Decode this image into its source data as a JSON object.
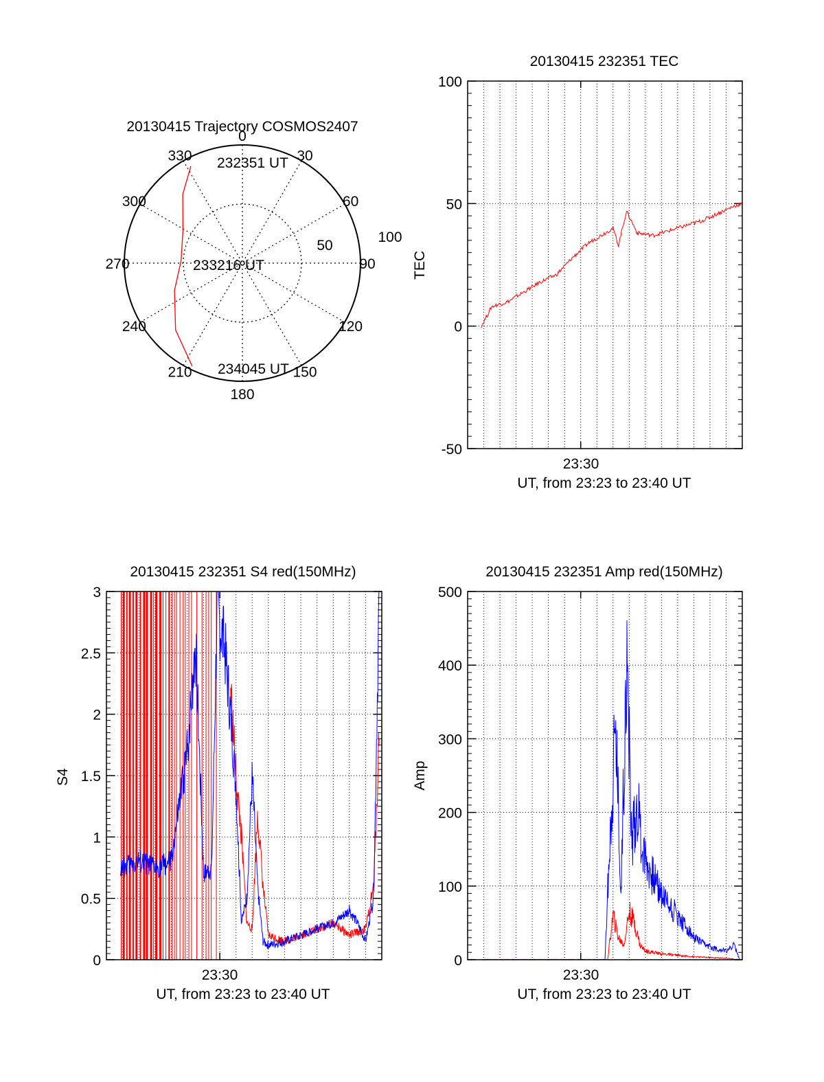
{
  "chart_data": [
    {
      "type": "polar",
      "title": "20130415 Trajectory COSMOS2407",
      "angle_labels": [
        "0",
        "30",
        "60",
        "90",
        "120",
        "150",
        "180",
        "210",
        "240",
        "270",
        "300",
        "330"
      ],
      "radial_labels": [
        "50",
        "100"
      ],
      "rlim": [
        0,
        100
      ],
      "grid": true,
      "series": [
        {
          "color": "#ff0000",
          "points": [
            [
              332,
              93
            ],
            [
              319,
              77
            ],
            [
              298,
              57
            ],
            [
              272,
              52
            ],
            [
              248,
              62
            ],
            [
              225,
              80
            ],
            [
              206,
              97
            ]
          ]
        }
      ],
      "annotations": [
        "232351 UT",
        "233216 UT",
        "234045 UT"
      ]
    },
    {
      "type": "line",
      "title": "20130415 232351 TEC",
      "xlabel": "UT, from 23:23 to 23:40 UT",
      "ylabel": "TEC",
      "x_tick_labels": [
        "23:30"
      ],
      "y_ticks": [
        -50,
        0,
        50,
        100
      ],
      "xlim": [
        "23:23",
        "23:40"
      ],
      "ylim": [
        -50,
        100
      ],
      "grid": true,
      "series": [
        {
          "color": "#ff0000",
          "x": [
            "23:23:51",
            "23:24:30",
            "23:25:30",
            "23:26:30",
            "23:27:30",
            "23:28:30",
            "23:29:30",
            "23:30:30",
            "23:31:30",
            "23:32:00",
            "23:32:20",
            "23:32:50",
            "23:33:30",
            "23:34:30",
            "23:35:30",
            "23:36:30",
            "23:37:30",
            "23:38:30",
            "23:39:30",
            "23:40:00"
          ],
          "y": [
            0,
            8,
            10,
            14,
            18,
            21,
            28,
            34,
            38,
            40,
            33,
            47,
            38,
            37,
            39,
            41,
            43,
            46,
            49,
            50
          ]
        }
      ]
    },
    {
      "type": "line",
      "title": "20130415 232351 S4 red(150MHz)",
      "xlabel": "UT, from 23:23 to 23:40 UT",
      "ylabel": "S4",
      "x_tick_labels": [
        "23:30"
      ],
      "y_ticks": [
        0,
        0.5,
        1,
        1.5,
        2,
        2.5,
        3
      ],
      "y_tick_labels": [
        "0",
        "0.5",
        "1",
        "1.5",
        "2",
        "2.5",
        "3"
      ],
      "xlim": [
        "23:23",
        "23:40"
      ],
      "ylim": [
        0,
        3
      ],
      "grid": true,
      "series": [
        {
          "color": "#ff0000",
          "x": [
            "23:30:40",
            "23:31:00",
            "23:31:20",
            "23:31:40",
            "23:32:00",
            "23:32:20",
            "23:32:40",
            "23:33:00",
            "23:34:00",
            "23:35:00",
            "23:36:00",
            "23:37:00",
            "23:38:00",
            "23:39:00",
            "23:39:30",
            "23:39:50"
          ],
          "y": [
            2.2,
            1.5,
            1.0,
            0.3,
            0.25,
            1.2,
            0.6,
            0.2,
            0.15,
            0.2,
            0.25,
            0.3,
            0.2,
            0.25,
            0.6,
            1.8
          ]
        },
        {
          "color": "#0000ff",
          "x": [
            "23:23:51",
            "23:25:00",
            "23:26:00",
            "23:27:00",
            "23:28:00",
            "23:28:30",
            "23:29:00",
            "23:29:30",
            "23:29:50",
            "23:30:20",
            "23:30:40",
            "23:31:00",
            "23:31:20",
            "23:31:40",
            "23:32:00",
            "23:32:20",
            "23:32:40",
            "23:33:00",
            "23:34:00",
            "23:35:00",
            "23:36:00",
            "23:37:00",
            "23:38:00",
            "23:38:30",
            "23:39:00",
            "23:39:30",
            "23:39:50"
          ],
          "y": [
            0.75,
            0.8,
            0.75,
            0.8,
            1.7,
            2.6,
            0.7,
            0.75,
            2.9,
            2.5,
            2.0,
            1.4,
            0.3,
            0.5,
            1.5,
            0.6,
            0.15,
            0.12,
            0.15,
            0.2,
            0.25,
            0.3,
            0.4,
            0.3,
            0.15,
            0.5,
            3.0
          ]
        }
      ]
    },
    {
      "type": "line",
      "title": "20130415 232351 Amp red(150MHz)",
      "xlabel": "UT, from 23:23 to 23:40 UT",
      "ylabel": "Amp",
      "x_tick_labels": [
        "23:30"
      ],
      "y_ticks": [
        0,
        100,
        200,
        300,
        400,
        500
      ],
      "xlim": [
        "23:23",
        "23:40"
      ],
      "ylim": [
        0,
        500
      ],
      "grid": true,
      "series": [
        {
          "color": "#ff0000",
          "x": [
            "23:23:51",
            "23:31:40",
            "23:32:00",
            "23:32:20",
            "23:32:40",
            "23:33:00",
            "23:33:20",
            "23:33:40",
            "23:34:00",
            "23:35:00",
            "23:36:00",
            "23:37:00",
            "23:38:00",
            "23:39:00",
            "23:39:50"
          ],
          "y": [
            0,
            0,
            60,
            30,
            20,
            65,
            50,
            20,
            12,
            8,
            6,
            4,
            3,
            2,
            0
          ]
        },
        {
          "color": "#0000ff",
          "x": [
            "23:23:51",
            "23:31:30",
            "23:31:50",
            "23:32:10",
            "23:32:30",
            "23:32:50",
            "23:33:10",
            "23:33:30",
            "23:33:50",
            "23:34:20",
            "23:35:00",
            "23:36:00",
            "23:37:00",
            "23:37:40",
            "23:38:20",
            "23:39:00",
            "23:39:30",
            "23:39:50"
          ],
          "y": [
            0,
            0,
            180,
            320,
            90,
            410,
            160,
            210,
            150,
            120,
            90,
            60,
            30,
            20,
            15,
            12,
            20,
            0
          ]
        }
      ]
    }
  ]
}
